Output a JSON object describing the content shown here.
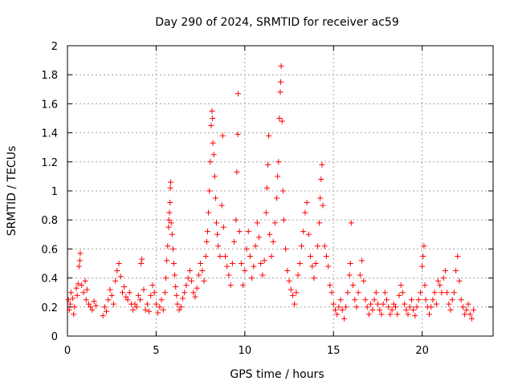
{
  "chart_data": {
    "type": "scatter",
    "title": "Day 290 of 2024, SRMTID for receiver ac59",
    "xlabel": "GPS time / hours",
    "ylabel": "SRMTID / TECUs",
    "xlim": [
      0,
      24
    ],
    "ylim": [
      0,
      2
    ],
    "xticks": [
      0,
      5,
      10,
      15,
      20
    ],
    "yticks": [
      0,
      0.2,
      0.4,
      0.6,
      0.8,
      1,
      1.2,
      1.4,
      1.6,
      1.8,
      2
    ],
    "xtick_labels": [
      "0",
      "5",
      "10",
      "15",
      "20"
    ],
    "ytick_labels": [
      "0",
      "0.2",
      "0.4",
      "0.6",
      "0.8",
      "1",
      "1.2",
      "1.4",
      "1.6",
      "1.8",
      "2"
    ],
    "grid": true,
    "marker": "+",
    "color": "#ff0000",
    "series": [
      {
        "name": "SRMTID",
        "points": [
          [
            0.05,
            0.25
          ],
          [
            0.1,
            0.18
          ],
          [
            0.15,
            0.22
          ],
          [
            0.2,
            0.3
          ],
          [
            0.3,
            0.26
          ],
          [
            0.35,
            0.15
          ],
          [
            0.4,
            0.2
          ],
          [
            0.5,
            0.33
          ],
          [
            0.55,
            0.28
          ],
          [
            0.6,
            0.36
          ],
          [
            0.65,
            0.48
          ],
          [
            0.7,
            0.52
          ],
          [
            0.72,
            0.57
          ],
          [
            0.8,
            0.35
          ],
          [
            0.9,
            0.3
          ],
          [
            1.0,
            0.38
          ],
          [
            1.05,
            0.25
          ],
          [
            1.1,
            0.32
          ],
          [
            1.2,
            0.22
          ],
          [
            1.3,
            0.2
          ],
          [
            1.4,
            0.18
          ],
          [
            1.5,
            0.24
          ],
          [
            1.6,
            0.21
          ],
          [
            2.0,
            0.14
          ],
          [
            2.1,
            0.2
          ],
          [
            2.2,
            0.17
          ],
          [
            2.3,
            0.25
          ],
          [
            2.4,
            0.32
          ],
          [
            2.5,
            0.28
          ],
          [
            2.6,
            0.22
          ],
          [
            2.7,
            0.38
          ],
          [
            2.8,
            0.45
          ],
          [
            2.9,
            0.5
          ],
          [
            3.0,
            0.41
          ],
          [
            3.1,
            0.3
          ],
          [
            3.2,
            0.34
          ],
          [
            3.3,
            0.27
          ],
          [
            3.4,
            0.25
          ],
          [
            3.5,
            0.3
          ],
          [
            3.6,
            0.22
          ],
          [
            3.7,
            0.18
          ],
          [
            3.8,
            0.22
          ],
          [
            3.9,
            0.2
          ],
          [
            4.0,
            0.28
          ],
          [
            4.1,
            0.25
          ],
          [
            4.15,
            0.5
          ],
          [
            4.2,
            0.53
          ],
          [
            4.3,
            0.32
          ],
          [
            4.4,
            0.18
          ],
          [
            4.5,
            0.22
          ],
          [
            4.6,
            0.17
          ],
          [
            4.7,
            0.28
          ],
          [
            4.8,
            0.35
          ],
          [
            4.9,
            0.3
          ],
          [
            5.0,
            0.22
          ],
          [
            5.1,
            0.16
          ],
          [
            5.2,
            0.2
          ],
          [
            5.3,
            0.25
          ],
          [
            5.4,
            0.18
          ],
          [
            5.5,
            0.3
          ],
          [
            5.55,
            0.4
          ],
          [
            5.6,
            0.52
          ],
          [
            5.65,
            0.62
          ],
          [
            5.7,
            0.75
          ],
          [
            5.72,
            0.8
          ],
          [
            5.75,
            0.85
          ],
          [
            5.78,
            0.92
          ],
          [
            5.8,
            1.02
          ],
          [
            5.82,
            1.06
          ],
          [
            5.85,
            0.78
          ],
          [
            5.9,
            0.7
          ],
          [
            5.95,
            0.6
          ],
          [
            6.0,
            0.5
          ],
          [
            6.05,
            0.42
          ],
          [
            6.1,
            0.34
          ],
          [
            6.15,
            0.28
          ],
          [
            6.2,
            0.22
          ],
          [
            6.3,
            0.18
          ],
          [
            6.4,
            0.2
          ],
          [
            6.5,
            0.26
          ],
          [
            6.6,
            0.3
          ],
          [
            6.7,
            0.35
          ],
          [
            6.8,
            0.4
          ],
          [
            6.9,
            0.45
          ],
          [
            7.0,
            0.38
          ],
          [
            7.1,
            0.3
          ],
          [
            7.2,
            0.27
          ],
          [
            7.3,
            0.33
          ],
          [
            7.4,
            0.42
          ],
          [
            7.5,
            0.5
          ],
          [
            7.6,
            0.45
          ],
          [
            7.7,
            0.38
          ],
          [
            7.8,
            0.55
          ],
          [
            7.85,
            0.65
          ],
          [
            7.9,
            0.72
          ],
          [
            7.95,
            0.85
          ],
          [
            8.0,
            1.0
          ],
          [
            8.05,
            1.2
          ],
          [
            8.1,
            1.45
          ],
          [
            8.15,
            1.55
          ],
          [
            8.18,
            1.5
          ],
          [
            8.2,
            1.33
          ],
          [
            8.25,
            1.25
          ],
          [
            8.3,
            1.1
          ],
          [
            8.35,
            0.95
          ],
          [
            8.4,
            0.78
          ],
          [
            8.45,
            0.7
          ],
          [
            8.5,
            0.62
          ],
          [
            8.6,
            0.55
          ],
          [
            8.7,
            0.9
          ],
          [
            8.75,
            1.38
          ],
          [
            8.8,
            0.75
          ],
          [
            8.9,
            0.55
          ],
          [
            9.0,
            0.48
          ],
          [
            9.1,
            0.42
          ],
          [
            9.2,
            0.35
          ],
          [
            9.3,
            0.5
          ],
          [
            9.4,
            0.65
          ],
          [
            9.5,
            0.8
          ],
          [
            9.55,
            1.13
          ],
          [
            9.6,
            1.39
          ],
          [
            9.62,
            1.67
          ],
          [
            9.7,
            0.72
          ],
          [
            9.8,
            0.5
          ],
          [
            9.9,
            0.35
          ],
          [
            10.0,
            0.45
          ],
          [
            10.1,
            0.6
          ],
          [
            10.2,
            0.72
          ],
          [
            10.3,
            0.55
          ],
          [
            10.4,
            0.4
          ],
          [
            10.5,
            0.48
          ],
          [
            10.6,
            0.62
          ],
          [
            10.7,
            0.78
          ],
          [
            10.8,
            0.68
          ],
          [
            10.9,
            0.5
          ],
          [
            11.0,
            0.42
          ],
          [
            11.1,
            0.52
          ],
          [
            11.2,
            0.85
          ],
          [
            11.25,
            1.02
          ],
          [
            11.3,
            1.18
          ],
          [
            11.35,
            1.38
          ],
          [
            11.4,
            0.7
          ],
          [
            11.5,
            0.55
          ],
          [
            11.6,
            0.65
          ],
          [
            11.7,
            0.78
          ],
          [
            11.8,
            0.95
          ],
          [
            11.85,
            1.1
          ],
          [
            11.9,
            1.2
          ],
          [
            11.95,
            1.5
          ],
          [
            12.0,
            1.68
          ],
          [
            12.02,
            1.75
          ],
          [
            12.05,
            1.86
          ],
          [
            12.1,
            1.48
          ],
          [
            12.15,
            1.0
          ],
          [
            12.2,
            0.8
          ],
          [
            12.3,
            0.6
          ],
          [
            12.4,
            0.45
          ],
          [
            12.5,
            0.38
          ],
          [
            12.6,
            0.32
          ],
          [
            12.7,
            0.28
          ],
          [
            12.8,
            0.22
          ],
          [
            12.9,
            0.3
          ],
          [
            13.0,
            0.42
          ],
          [
            13.1,
            0.5
          ],
          [
            13.2,
            0.62
          ],
          [
            13.3,
            0.72
          ],
          [
            13.4,
            0.85
          ],
          [
            13.5,
            0.92
          ],
          [
            13.6,
            0.7
          ],
          [
            13.7,
            0.55
          ],
          [
            13.8,
            0.48
          ],
          [
            13.9,
            0.4
          ],
          [
            14.0,
            0.5
          ],
          [
            14.1,
            0.62
          ],
          [
            14.2,
            0.78
          ],
          [
            14.25,
            0.95
          ],
          [
            14.3,
            1.08
          ],
          [
            14.35,
            1.18
          ],
          [
            14.4,
            0.9
          ],
          [
            14.5,
            0.62
          ],
          [
            14.6,
            0.55
          ],
          [
            14.7,
            0.48
          ],
          [
            14.8,
            0.35
          ],
          [
            14.9,
            0.3
          ],
          [
            15.0,
            0.22
          ],
          [
            15.1,
            0.18
          ],
          [
            15.2,
            0.15
          ],
          [
            15.3,
            0.2
          ],
          [
            15.4,
            0.25
          ],
          [
            15.5,
            0.18
          ],
          [
            15.6,
            0.12
          ],
          [
            15.7,
            0.2
          ],
          [
            15.8,
            0.3
          ],
          [
            15.9,
            0.42
          ],
          [
            15.95,
            0.5
          ],
          [
            16.0,
            0.78
          ],
          [
            16.1,
            0.35
          ],
          [
            16.2,
            0.25
          ],
          [
            16.3,
            0.2
          ],
          [
            16.4,
            0.3
          ],
          [
            16.5,
            0.42
          ],
          [
            16.6,
            0.52
          ],
          [
            16.7,
            0.38
          ],
          [
            16.8,
            0.25
          ],
          [
            16.9,
            0.2
          ],
          [
            17.0,
            0.15
          ],
          [
            17.1,
            0.22
          ],
          [
            17.2,
            0.18
          ],
          [
            17.3,
            0.25
          ],
          [
            17.4,
            0.3
          ],
          [
            17.5,
            0.22
          ],
          [
            17.6,
            0.18
          ],
          [
            17.7,
            0.15
          ],
          [
            17.8,
            0.22
          ],
          [
            17.9,
            0.3
          ],
          [
            18.0,
            0.25
          ],
          [
            18.1,
            0.2
          ],
          [
            18.2,
            0.15
          ],
          [
            18.3,
            0.18
          ],
          [
            18.4,
            0.22
          ],
          [
            18.5,
            0.2
          ],
          [
            18.6,
            0.15
          ],
          [
            18.7,
            0.28
          ],
          [
            18.8,
            0.35
          ],
          [
            18.9,
            0.3
          ],
          [
            19.0,
            0.22
          ],
          [
            19.1,
            0.18
          ],
          [
            19.2,
            0.15
          ],
          [
            19.3,
            0.2
          ],
          [
            19.4,
            0.25
          ],
          [
            19.5,
            0.18
          ],
          [
            19.6,
            0.14
          ],
          [
            19.7,
            0.2
          ],
          [
            19.8,
            0.25
          ],
          [
            19.9,
            0.3
          ],
          [
            20.0,
            0.48
          ],
          [
            20.05,
            0.55
          ],
          [
            20.1,
            0.62
          ],
          [
            20.15,
            0.35
          ],
          [
            20.2,
            0.25
          ],
          [
            20.3,
            0.2
          ],
          [
            20.4,
            0.15
          ],
          [
            20.5,
            0.2
          ],
          [
            20.6,
            0.25
          ],
          [
            20.7,
            0.3
          ],
          [
            20.8,
            0.22
          ],
          [
            20.9,
            0.38
          ],
          [
            21.0,
            0.35
          ],
          [
            21.1,
            0.3
          ],
          [
            21.2,
            0.4
          ],
          [
            21.3,
            0.45
          ],
          [
            21.4,
            0.3
          ],
          [
            21.5,
            0.22
          ],
          [
            21.6,
            0.18
          ],
          [
            21.7,
            0.25
          ],
          [
            21.8,
            0.3
          ],
          [
            21.9,
            0.45
          ],
          [
            22.0,
            0.55
          ],
          [
            22.1,
            0.38
          ],
          [
            22.2,
            0.25
          ],
          [
            22.3,
            0.2
          ],
          [
            22.4,
            0.15
          ],
          [
            22.5,
            0.18
          ],
          [
            22.6,
            0.22
          ],
          [
            22.7,
            0.15
          ],
          [
            22.8,
            0.12
          ],
          [
            22.9,
            0.18
          ]
        ]
      }
    ]
  }
}
